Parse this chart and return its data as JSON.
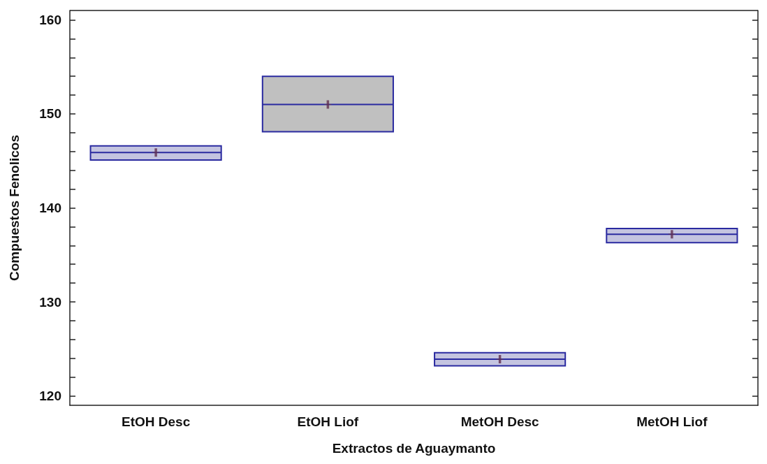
{
  "chart_data": {
    "type": "box",
    "xlabel": "Extractos de Aguaymanto",
    "ylabel": "Compuestos Fenolicos",
    "categories": [
      "EtOH Desc",
      "EtOH Liof",
      "MetOH Desc",
      "MetOH Liof"
    ],
    "series": [
      {
        "color": "#2a2aa0",
        "colors": [
          "#c4c4e0",
          "#c0c0c0",
          "#c4c4e0",
          "#c4c4e0"
        ],
        "boxes": [
          {
            "low": 145.1,
            "q1": 145.1,
            "median": 145.9,
            "q3": 146.6,
            "high": 146.6,
            "mean": 145.9
          },
          {
            "low": 148.1,
            "q1": 148.1,
            "median": 151.0,
            "q3": 154.0,
            "high": 154.0,
            "mean": 151.0
          },
          {
            "low": 123.2,
            "q1": 123.2,
            "median": 123.9,
            "q3": 124.6,
            "high": 124.6,
            "mean": 123.9
          },
          {
            "low": 136.3,
            "q1": 136.3,
            "median": 137.2,
            "q3": 137.8,
            "high": 137.8,
            "mean": 137.2
          }
        ]
      }
    ],
    "ylim": [
      119,
      161
    ],
    "yticks": [
      120,
      {
        "value": 122,
        "label": null
      },
      {
        "value": 124,
        "label": null
      },
      {
        "value": 126,
        "label": null
      },
      {
        "value": 128,
        "label": null
      },
      130,
      {
        "value": 132,
        "label": null
      },
      {
        "value": 134,
        "label": null
      },
      {
        "value": 136,
        "label": null
      },
      {
        "value": 138,
        "label": null
      },
      140,
      {
        "value": 142,
        "label": null
      },
      {
        "value": 144,
        "label": null
      },
      {
        "value": 146,
        "label": null
      },
      {
        "value": 148,
        "label": null
      },
      150,
      {
        "value": 152,
        "label": null
      },
      {
        "value": 154,
        "label": null
      },
      {
        "value": 156,
        "label": null
      },
      {
        "value": 158,
        "label": null
      },
      160
    ],
    "grid": false
  }
}
